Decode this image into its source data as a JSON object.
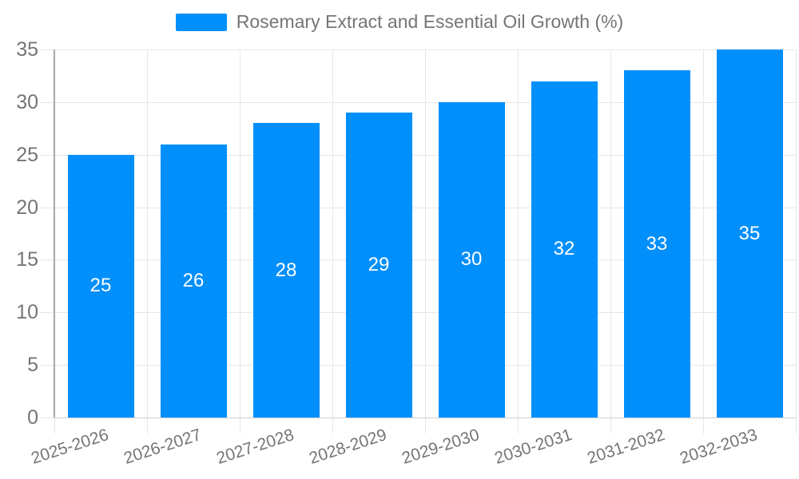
{
  "legend": {
    "label": "Rosemary Extract and Essential Oil Growth (%)"
  },
  "chart_data": {
    "type": "bar",
    "title": "Rosemary Extract and Essential Oil Growth (%)",
    "categories": [
      "2025-2026",
      "2026-2027",
      "2027-2028",
      "2028-2029",
      "2029-2030",
      "2030-2031",
      "2031-2032",
      "2032-2033"
    ],
    "values": [
      25,
      26,
      28,
      29,
      30,
      32,
      33,
      35
    ],
    "xlabel": "",
    "ylabel": "",
    "ylim": [
      0,
      35
    ],
    "yticks": [
      0,
      5,
      10,
      15,
      20,
      25,
      30,
      35
    ],
    "grid": "horizontal and vertical gridlines on",
    "legend_position": "top-center",
    "x_label_rotation_deg": -18,
    "colors": {
      "bar": "#008FFB",
      "bar_label": "#FFFFFF",
      "axis_label": "#757575",
      "gridline": "#E7E7E7",
      "y_axis_line": "#A8A8A8",
      "x_axis_line": "#D0D0D0",
      "background": "#FFFFFF"
    }
  }
}
